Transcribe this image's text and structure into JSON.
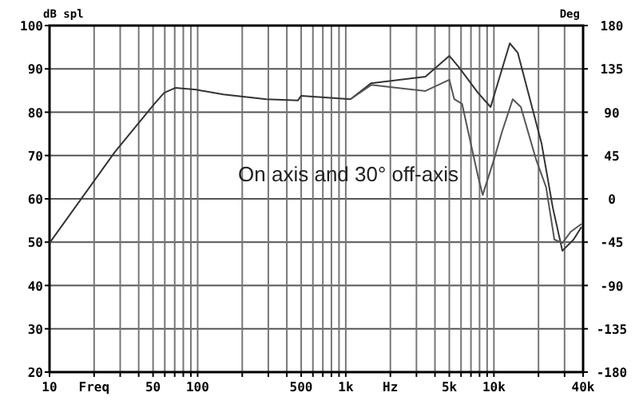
{
  "chart_data": {
    "type": "line",
    "ylabel": "dB spl",
    "y2label": "Deg",
    "log": "x",
    "grid": true,
    "line_style": "solid",
    "marker": "none",
    "xlim": [
      10,
      40000
    ],
    "ylim": [
      20,
      100
    ],
    "y2lim": [
      -180,
      180
    ],
    "xticks": [
      10,
      {
        "value": 20,
        "label": "Freq"
      },
      {
        "value": 30,
        "label": null
      },
      {
        "value": 40,
        "label": null
      },
      50,
      {
        "value": 60,
        "label": null
      },
      {
        "value": 70,
        "label": null
      },
      {
        "value": 80,
        "label": null
      },
      {
        "value": 90,
        "label": null
      },
      100,
      {
        "value": 200,
        "label": null
      },
      {
        "value": 300,
        "label": null
      },
      {
        "value": 400,
        "label": null
      },
      500,
      {
        "value": 600,
        "label": null
      },
      {
        "value": 700,
        "label": null
      },
      {
        "value": 800,
        "label": null
      },
      {
        "value": 900,
        "label": null
      },
      {
        "value": 1000,
        "label": "1k"
      },
      {
        "value": 2000,
        "label": "Hz"
      },
      {
        "value": 3000,
        "label": null
      },
      {
        "value": 4000,
        "label": null
      },
      {
        "value": 5000,
        "label": "5k"
      },
      {
        "value": 6000,
        "label": null
      },
      {
        "value": 7000,
        "label": null
      },
      {
        "value": 8000,
        "label": null
      },
      {
        "value": 9000,
        "label": null
      },
      {
        "value": 10000,
        "label": "10k"
      },
      {
        "value": 20000,
        "label": null
      },
      {
        "value": 30000,
        "label": null
      },
      {
        "value": 40000,
        "label": "40k"
      }
    ],
    "yticks": [
      20,
      30,
      40,
      50,
      60,
      70,
      80,
      90,
      100
    ],
    "y2ticks": [
      -180,
      -135,
      -90,
      -45,
      0,
      45,
      90,
      135,
      180
    ],
    "annotations": [
      "On axis and 30° off-axis"
    ],
    "series": [
      {
        "color": "#333333",
        "x": [
          10,
          27.6,
          51,
          59.5,
          70.6,
          97.5,
          149,
          290,
          475,
          500,
          1076,
          1485,
          3450,
          5000,
          5800,
          7800,
          9500,
          12800,
          14500,
          21000,
          25000,
          29000,
          34500,
          39000
        ],
        "values": [
          49.8,
          70.8,
          81.9,
          84.5,
          85.6,
          85.2,
          84.1,
          83,
          82.7,
          83.8,
          83,
          86.7,
          88.2,
          93,
          90.4,
          84.5,
          81.2,
          95.9,
          93.7,
          72.7,
          57.9,
          48,
          50.6,
          53.5
        ]
      },
      {
        "color": "#555555",
        "x": [
          1076,
          1485,
          3450,
          5000,
          5400,
          6100,
          7800,
          8400,
          10000,
          11300,
          13400,
          15200,
          19300,
          22500,
          25600,
          29000,
          33000,
          39000
        ],
        "values": [
          83,
          86.3,
          84.9,
          87.5,
          83,
          81.9,
          65.3,
          60.9,
          69,
          75.3,
          83,
          81.2,
          69,
          62.7,
          50.6,
          49.8,
          52.4,
          54.2
        ]
      }
    ]
  }
}
